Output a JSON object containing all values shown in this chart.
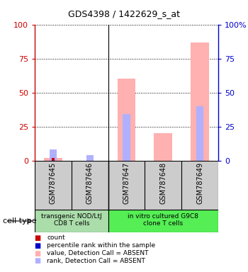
{
  "title": "GDS4398 / 1422629_s_at",
  "samples": [
    "GSM787645",
    "GSM787646",
    "GSM787647",
    "GSM787648",
    "GSM787649"
  ],
  "value_bars": [
    2,
    0,
    60,
    20,
    87
  ],
  "rank_bars": [
    8,
    4,
    34,
    0,
    40
  ],
  "count_bars": [
    2,
    0,
    0,
    0,
    0
  ],
  "count_rank_bars": [
    0,
    0,
    0,
    0,
    0
  ],
  "ylim": [
    0,
    100
  ],
  "yticks": [
    0,
    25,
    50,
    75,
    100
  ],
  "cell_types": [
    {
      "label": "transgenic NOD/LtJ\nCD8 T cells",
      "span": [
        0,
        1
      ],
      "color": "#aaddaa"
    },
    {
      "label": "in vitro cultured G9C8\nclone T cells",
      "span": [
        2,
        4
      ],
      "color": "#55ee55"
    }
  ],
  "value_color_absent": "#ffb0b0",
  "rank_color_absent": "#b0b0ff",
  "count_color": "#cc0000",
  "count_rank_color": "#0000cc",
  "left_axis_color": "#cc0000",
  "right_axis_color": "#0000cc",
  "legend_items": [
    {
      "color": "#cc0000",
      "label": "count"
    },
    {
      "color": "#0000cc",
      "label": "percentile rank within the sample"
    },
    {
      "color": "#ffb0b0",
      "label": "value, Detection Call = ABSENT"
    },
    {
      "color": "#b0b0ff",
      "label": "rank, Detection Call = ABSENT"
    }
  ],
  "cell_type_label": "cell type",
  "bg_color": "#cccccc",
  "group1_color": "#aaddaa",
  "group2_color": "#55ee55"
}
